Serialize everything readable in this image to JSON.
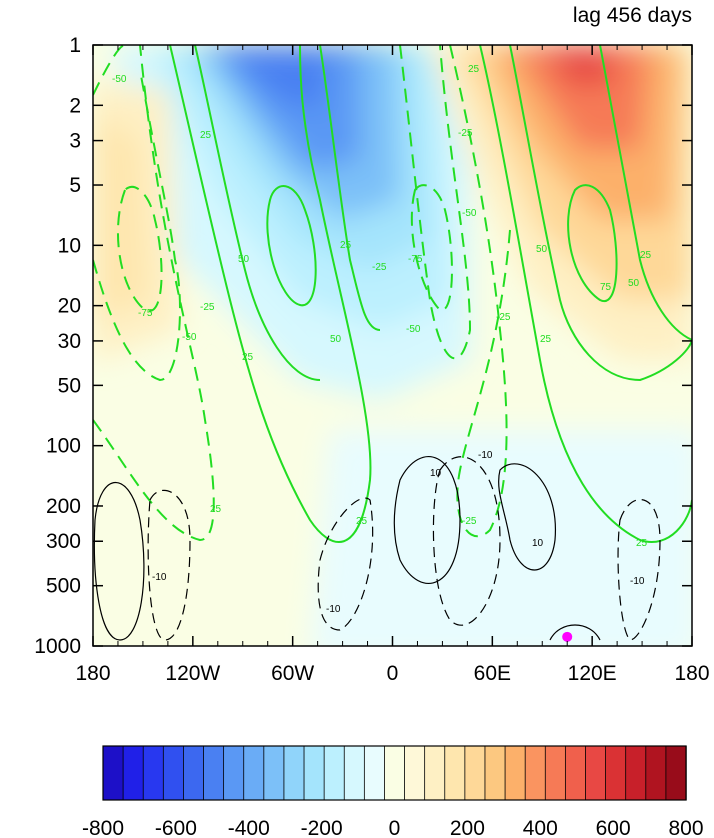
{
  "chart_data": {
    "type": "heatmap",
    "title": "lag 456 days",
    "x_ticks": [
      {
        "value": -180,
        "label": "180"
      },
      {
        "value": -120,
        "label": "120W"
      },
      {
        "value": -60,
        "label": "60W"
      },
      {
        "value": 0,
        "label": "0"
      },
      {
        "value": 60,
        "label": "60E"
      },
      {
        "value": 120,
        "label": "120E"
      },
      {
        "value": 180,
        "label": "180"
      }
    ],
    "y_ticks": [
      {
        "value": 1,
        "label": "1"
      },
      {
        "value": 2,
        "label": "2"
      },
      {
        "value": 3,
        "label": "3"
      },
      {
        "value": 5,
        "label": "5"
      },
      {
        "value": 10,
        "label": "10"
      },
      {
        "value": 20,
        "label": "20"
      },
      {
        "value": 30,
        "label": "30"
      },
      {
        "value": 50,
        "label": "50"
      },
      {
        "value": 100,
        "label": "100"
      },
      {
        "value": 200,
        "label": "200"
      },
      {
        "value": 300,
        "label": "300"
      },
      {
        "value": 500,
        "label": "500"
      },
      {
        "value": 1000,
        "label": "1000"
      }
    ],
    "xlim": [
      -180,
      180
    ],
    "ylim": [
      1,
      1000
    ],
    "y_scale": "log",
    "y_inverted": true,
    "colorbar": {
      "min": -800,
      "max": 800,
      "step": 50,
      "tick_labels": [
        {
          "value": -800,
          "label": "-800"
        },
        {
          "value": -600,
          "label": "-600"
        },
        {
          "value": -400,
          "label": "-400"
        },
        {
          "value": -200,
          "label": "-200"
        },
        {
          "value": 0,
          "label": "0"
        },
        {
          "value": 200,
          "label": "200"
        },
        {
          "value": 400,
          "label": "400"
        },
        {
          "value": 600,
          "label": "600"
        },
        {
          "value": 800,
          "label": "800"
        }
      ],
      "colors": [
        "#1d10c8",
        "#2020e8",
        "#2838f0",
        "#3050f0",
        "#3c68f0",
        "#4a80f2",
        "#5a98f4",
        "#6aacf6",
        "#7cc0f8",
        "#90d4fa",
        "#a4e4fc",
        "#bcf0fe",
        "#d6f8fe",
        "#e8fcfe",
        "#fafee4",
        "#fef8d8",
        "#fef0c4",
        "#fee6ae",
        "#fed898",
        "#fcc880",
        "#fcb06a",
        "#fa9460",
        "#f67a56",
        "#f0604c",
        "#e84844",
        "#da3234",
        "#c8202a",
        "#b01420",
        "#980c1a"
      ]
    },
    "shaded_field": [
      {
        "lon": -58,
        "p": 1.4,
        "value": -420
      },
      {
        "lon": -48,
        "p": 3,
        "value": -360
      },
      {
        "lon": -20,
        "p": 8,
        "value": -220
      },
      {
        "lon": -5,
        "p": 25,
        "value": -130
      },
      {
        "lon": 110,
        "p": 1.3,
        "value": 560
      },
      {
        "lon": 125,
        "p": 3,
        "value": 420
      },
      {
        "lon": 150,
        "p": 10,
        "value": 230
      },
      {
        "lon": 165,
        "p": 30,
        "value": 120
      },
      {
        "lon": -165,
        "p": 15,
        "value": 150
      },
      {
        "lon": -150,
        "p": 300,
        "value": 40
      },
      {
        "lon": 40,
        "p": 500,
        "value": -60
      },
      {
        "lon": -50,
        "p": 500,
        "value": 30
      }
    ],
    "green_contours": [
      {
        "level": 25,
        "label": "25"
      },
      {
        "level": 50,
        "label": "50"
      },
      {
        "level": 75,
        "label": "75"
      },
      {
        "level": -25,
        "label": "-25"
      },
      {
        "level": -50,
        "label": "-50"
      },
      {
        "level": -75,
        "label": "-75"
      }
    ],
    "black_contours": [
      {
        "level": 10,
        "label": "10"
      },
      {
        "level": -10,
        "label": "-10"
      }
    ],
    "marker": {
      "lon": 105,
      "p": 900,
      "color": "#ff00ff"
    }
  }
}
